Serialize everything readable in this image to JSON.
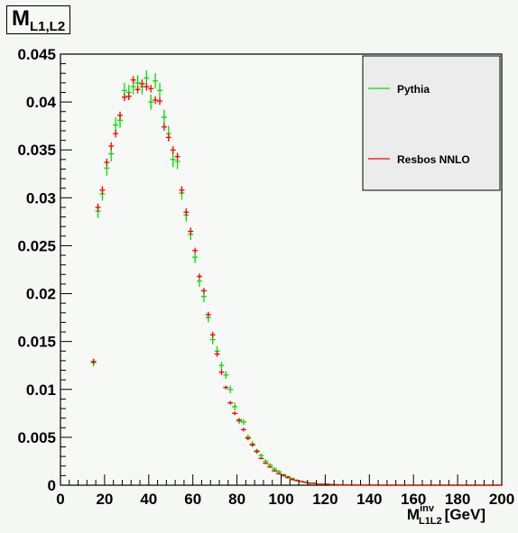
{
  "title": {
    "main": "M",
    "sub": "L1,L2"
  },
  "xlabel": {
    "main": "M",
    "sup": "inv",
    "sub": "L1L2",
    "unit": "[GeV]"
  },
  "chart_data": {
    "type": "scatter",
    "title": "M L1,L2",
    "xlabel": "M inv L1L2 [GeV]",
    "ylabel": "",
    "xlim": [
      0,
      200
    ],
    "ylim": [
      0,
      0.045
    ],
    "x_ticks": [
      "0",
      "20",
      "40",
      "60",
      "80",
      "100",
      "120",
      "140",
      "160",
      "180",
      "200"
    ],
    "y_ticks": [
      "0",
      "0.005",
      "0.01",
      "0.015",
      "0.02",
      "0.025",
      "0.03",
      "0.035",
      "0.04",
      "0.045"
    ],
    "legend_position": "top-right",
    "grid": false,
    "series": [
      {
        "name": "Pythia",
        "color": "#00dd00",
        "points": [
          [
            15,
            0.0128,
            0.0004
          ],
          [
            17,
            0.0286,
            0.0007
          ],
          [
            19,
            0.0304,
            0.0007
          ],
          [
            21,
            0.0331,
            0.0008
          ],
          [
            23,
            0.0346,
            0.0008
          ],
          [
            25,
            0.0376,
            0.0008
          ],
          [
            27,
            0.0381,
            0.0008
          ],
          [
            29,
            0.0412,
            0.0008
          ],
          [
            31,
            0.041,
            0.0008
          ],
          [
            33,
            0.0416,
            0.0008
          ],
          [
            35,
            0.042,
            0.0008
          ],
          [
            37,
            0.0416,
            0.0008
          ],
          [
            39,
            0.0425,
            0.0008
          ],
          [
            41,
            0.04,
            0.0008
          ],
          [
            43,
            0.0422,
            0.0008
          ],
          [
            45,
            0.0412,
            0.0008
          ],
          [
            47,
            0.0384,
            0.0008
          ],
          [
            49,
            0.0367,
            0.0008
          ],
          [
            51,
            0.034,
            0.0008
          ],
          [
            53,
            0.0338,
            0.0008
          ],
          [
            55,
            0.0305,
            0.0007
          ],
          [
            57,
            0.0282,
            0.0007
          ],
          [
            59,
            0.0262,
            0.0006
          ],
          [
            61,
            0.0238,
            0.0006
          ],
          [
            63,
            0.0213,
            0.0006
          ],
          [
            65,
            0.0197,
            0.0006
          ],
          [
            67,
            0.0175,
            0.0005
          ],
          [
            69,
            0.0152,
            0.0005
          ],
          [
            71,
            0.014,
            0.0005
          ],
          [
            73,
            0.0125,
            0.0004
          ],
          [
            75,
            0.0115,
            0.0004
          ],
          [
            77,
            0.01,
            0.0004
          ],
          [
            79,
            0.0082,
            0.0004
          ],
          [
            81,
            0.0067,
            0.0003
          ],
          [
            83,
            0.0066,
            0.0003
          ],
          [
            85,
            0.005,
            0.0003
          ],
          [
            87,
            0.0043,
            0.0003
          ],
          [
            89,
            0.0036,
            0.0002
          ],
          [
            91,
            0.0031,
            0.0002
          ],
          [
            93,
            0.0025,
            0.0002
          ],
          [
            95,
            0.0021,
            0.0002
          ],
          [
            97,
            0.0017,
            0.0002
          ],
          [
            99,
            0.0014,
            0.0002
          ],
          [
            101,
            0.0011,
            0.0001
          ],
          [
            103,
            0.0009,
            0.0001
          ],
          [
            105,
            0.0007,
            0.0001
          ],
          [
            107,
            0.0005,
            0.0001
          ],
          [
            109,
            0.0004,
            0.0001
          ],
          [
            111,
            0.0003,
            0.0001
          ],
          [
            113,
            0.0002,
            0.0001
          ],
          [
            115,
            0.0002,
            0.0001
          ],
          [
            117,
            0.0001,
            0.0001
          ],
          [
            119,
            0.0001,
            0.0001
          ],
          [
            121,
            0.0001,
            5e-05
          ],
          [
            123,
            5e-05,
            5e-05
          ],
          [
            125,
            4e-05,
            3e-05
          ],
          [
            127,
            3e-05,
            3e-05
          ],
          [
            129,
            2e-05,
            2e-05
          ],
          [
            131,
            2e-05,
            2e-05
          ],
          [
            133,
            1e-05,
            1e-05
          ],
          [
            135,
            1e-05,
            1e-05
          ],
          [
            137,
            1e-05,
            1e-05
          ],
          [
            139,
            1e-05,
            1e-05
          ],
          [
            141,
            1e-05,
            1e-05
          ],
          [
            143,
            0.0,
            1e-05
          ],
          [
            145,
            0.0,
            0.0
          ],
          [
            147,
            0.0,
            0.0
          ],
          [
            149,
            0.0,
            0.0
          ],
          [
            151,
            0.0,
            0.0
          ],
          [
            153,
            0.0,
            0.0
          ],
          [
            155,
            0.0,
            0.0
          ],
          [
            157,
            0.0,
            0.0
          ],
          [
            159,
            0.0,
            0.0
          ],
          [
            161,
            0.0,
            0.0
          ],
          [
            163,
            0.0,
            0.0
          ],
          [
            165,
            0.0,
            0.0
          ],
          [
            167,
            0.0,
            0.0
          ],
          [
            169,
            0.0,
            0.0
          ],
          [
            171,
            0.0,
            0.0
          ],
          [
            173,
            0.0,
            0.0
          ],
          [
            175,
            0.0,
            0.0
          ],
          [
            177,
            0.0,
            0.0
          ],
          [
            179,
            0.0,
            0.0
          ],
          [
            181,
            0.0,
            0.0
          ],
          [
            183,
            0.0,
            0.0
          ],
          [
            185,
            0.0,
            0.0
          ],
          [
            187,
            0.0,
            0.0
          ],
          [
            189,
            0.0,
            0.0
          ],
          [
            191,
            0.0,
            0.0
          ],
          [
            193,
            0.0,
            0.0
          ],
          [
            195,
            0.0,
            0.0
          ],
          [
            197,
            0.0,
            0.0
          ],
          [
            199,
            0.0,
            0.0
          ]
        ]
      },
      {
        "name": "Resbos NNLO",
        "color": "#ff0000",
        "points": [
          [
            15,
            0.0129,
            0.0003
          ],
          [
            17,
            0.029,
            0.0004
          ],
          [
            19,
            0.0308,
            0.0004
          ],
          [
            21,
            0.0337,
            0.0004
          ],
          [
            23,
            0.0354,
            0.0004
          ],
          [
            25,
            0.0367,
            0.0004
          ],
          [
            27,
            0.0386,
            0.0004
          ],
          [
            29,
            0.0405,
            0.0004
          ],
          [
            31,
            0.0406,
            0.0004
          ],
          [
            33,
            0.0423,
            0.0004
          ],
          [
            35,
            0.0413,
            0.0004
          ],
          [
            37,
            0.0419,
            0.0004
          ],
          [
            39,
            0.0416,
            0.0004
          ],
          [
            41,
            0.0414,
            0.0004
          ],
          [
            43,
            0.0402,
            0.0004
          ],
          [
            45,
            0.0401,
            0.0004
          ],
          [
            47,
            0.0374,
            0.0004
          ],
          [
            49,
            0.0363,
            0.0004
          ],
          [
            51,
            0.035,
            0.0004
          ],
          [
            53,
            0.0343,
            0.0004
          ],
          [
            55,
            0.0308,
            0.0004
          ],
          [
            57,
            0.0285,
            0.0004
          ],
          [
            59,
            0.0265,
            0.0004
          ],
          [
            61,
            0.0245,
            0.0003
          ],
          [
            63,
            0.0218,
            0.0003
          ],
          [
            65,
            0.0203,
            0.0003
          ],
          [
            67,
            0.0178,
            0.0003
          ],
          [
            69,
            0.0157,
            0.0003
          ],
          [
            71,
            0.0137,
            0.0003
          ],
          [
            73,
            0.0118,
            0.0003
          ],
          [
            75,
            0.0102,
            0.0002
          ],
          [
            77,
            0.0086,
            0.0002
          ],
          [
            79,
            0.0075,
            0.0002
          ],
          [
            81,
            0.0068,
            0.0002
          ],
          [
            83,
            0.0058,
            0.0002
          ],
          [
            85,
            0.0049,
            0.0002
          ],
          [
            87,
            0.0042,
            0.0002
          ],
          [
            89,
            0.0035,
            0.0002
          ],
          [
            91,
            0.0028,
            0.0001
          ],
          [
            93,
            0.0023,
            0.0001
          ],
          [
            95,
            0.0019,
            0.0001
          ],
          [
            97,
            0.0015,
            0.0001
          ],
          [
            99,
            0.0012,
            0.0001
          ],
          [
            101,
            0.001,
            0.0001
          ],
          [
            103,
            0.0008,
            0.0001
          ],
          [
            105,
            0.0006,
            0.0001
          ],
          [
            107,
            0.0005,
            0.0001
          ],
          [
            109,
            0.0004,
            5e-05
          ],
          [
            111,
            0.0003,
            5e-05
          ],
          [
            113,
            0.0002,
            5e-05
          ],
          [
            115,
            0.0002,
            5e-05
          ],
          [
            117,
            0.0001,
            4e-05
          ],
          [
            119,
            0.0001,
            4e-05
          ],
          [
            121,
            0.0001,
            3e-05
          ],
          [
            123,
            6e-05,
            3e-05
          ],
          [
            125,
            5e-05,
            2e-05
          ],
          [
            127,
            4e-05,
            2e-05
          ],
          [
            129,
            3e-05,
            2e-05
          ],
          [
            131,
            2e-05,
            1e-05
          ],
          [
            133,
            2e-05,
            1e-05
          ],
          [
            135,
            1e-05,
            1e-05
          ],
          [
            137,
            1e-05,
            1e-05
          ],
          [
            139,
            1e-05,
            1e-05
          ],
          [
            141,
            1e-05,
            1e-05
          ],
          [
            143,
            1e-05,
            0.0
          ],
          [
            145,
            0.0,
            0.0
          ],
          [
            147,
            0.0,
            0.0
          ],
          [
            149,
            0.0,
            0.0
          ],
          [
            151,
            0.0,
            0.0
          ],
          [
            153,
            0.0,
            0.0
          ],
          [
            155,
            0.0,
            0.0
          ],
          [
            157,
            0.0,
            0.0
          ],
          [
            159,
            0.0,
            0.0
          ],
          [
            161,
            0.0,
            0.0
          ],
          [
            163,
            0.0,
            0.0
          ],
          [
            165,
            0.0,
            0.0
          ],
          [
            167,
            0.0,
            0.0
          ],
          [
            169,
            0.0,
            0.0
          ],
          [
            171,
            0.0,
            0.0
          ],
          [
            173,
            0.0,
            0.0
          ],
          [
            175,
            0.0,
            0.0
          ],
          [
            177,
            0.0,
            0.0
          ],
          [
            179,
            0.0,
            0.0
          ],
          [
            181,
            0.0,
            0.0
          ],
          [
            183,
            0.0,
            0.0
          ],
          [
            185,
            0.0,
            0.0
          ],
          [
            187,
            0.0,
            0.0
          ],
          [
            189,
            0.0,
            0.0
          ],
          [
            191,
            0.0,
            0.0
          ],
          [
            193,
            0.0,
            0.0
          ],
          [
            195,
            0.0,
            0.0
          ],
          [
            197,
            0.0,
            0.0
          ],
          [
            199,
            0.0,
            0.0
          ]
        ]
      }
    ]
  }
}
